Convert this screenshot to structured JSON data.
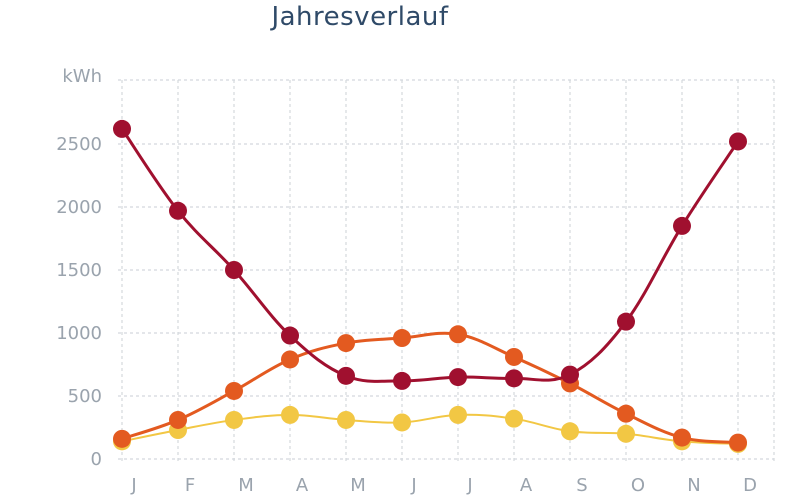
{
  "chart_data": {
    "type": "line",
    "title": "Jahresverlauf",
    "ylabel": "kWh",
    "xlabel": "",
    "categories": [
      "J",
      "F",
      "M",
      "A",
      "M",
      "J",
      "J",
      "A",
      "S",
      "O",
      "N",
      "D"
    ],
    "yticks": [
      "0",
      "500",
      "1000",
      "1500",
      "2000",
      "2500"
    ],
    "ylim": [
      0,
      2900
    ],
    "grid": true,
    "series": [
      {
        "color": "#a0102f",
        "values": [
          2620,
          1970,
          1500,
          980,
          660,
          620,
          650,
          640,
          670,
          1090,
          1850,
          2520
        ]
      },
      {
        "color": "#e35a20",
        "values": [
          160,
          310,
          540,
          790,
          920,
          960,
          990,
          810,
          600,
          360,
          170,
          130
        ]
      },
      {
        "color": "#f2c744",
        "values": [
          140,
          230,
          310,
          350,
          310,
          290,
          350,
          320,
          220,
          200,
          140,
          120
        ]
      }
    ]
  }
}
